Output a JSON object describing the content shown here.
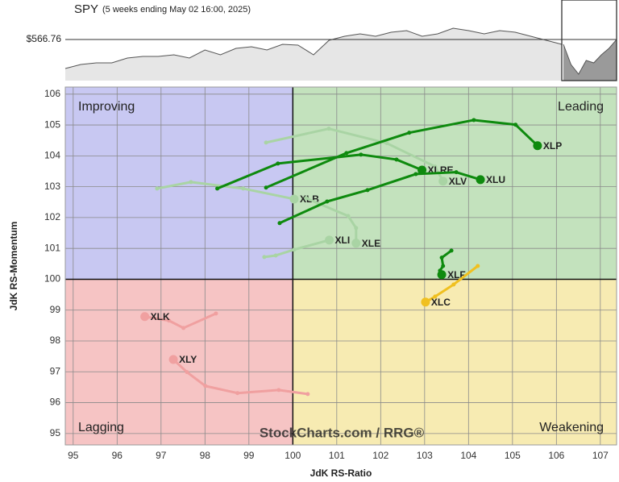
{
  "spy_chart": {
    "title": "SPY",
    "subtitle": "(5 weeks ending May 02 16:00, 2025)",
    "price_label": {
      "value": 566.76,
      "label": "$566.76"
    },
    "ylim": [
      485.2,
      645.2
    ],
    "history": [
      509.2,
      517.2,
      520.4,
      520.4,
      530,
      533.2,
      533.2,
      536.4,
      530,
      546,
      536.4,
      549.2,
      552.4,
      546,
      557.2,
      555.6,
      536.4,
      565.2,
      573.2,
      578,
      573.2,
      581.2,
      584.4,
      573.2,
      578,
      589.2,
      584.4,
      578,
      584.4,
      581.2,
      573.2,
      565.2,
      557.2
    ],
    "recent": [
      557.2,
      517.2,
      498,
      525.2,
      520.4,
      536.4,
      549.2,
      566.76
    ]
  },
  "chart_data": {
    "type": "line",
    "x_label": "JdK RS-Ratio",
    "y_label": "JdK RS-Momentum",
    "watermark": "StockCharts.com / RRG®",
    "quadrants": [
      "Improving",
      "Leading",
      "Weakening",
      "Lagging"
    ],
    "xlim": [
      94.82,
      107.37
    ],
    "ylim": [
      94.63,
      106.23
    ],
    "xticks": [
      95,
      96,
      97,
      98,
      99,
      100,
      101,
      102,
      103,
      104,
      105,
      106,
      107
    ],
    "yticks": [
      95,
      96,
      97,
      98,
      99,
      100,
      101,
      102,
      103,
      104,
      105,
      106
    ],
    "grid": true,
    "series": [
      {
        "name": "XLB",
        "color": "#a9d4a4",
        "x": [
          96.91,
          97.68,
          98.87,
          100.03
        ],
        "values": [
          102.94,
          103.15,
          102.94,
          102.6
        ]
      },
      {
        "name": "XLE",
        "color": "#a9d4a4",
        "x": [
          100.3,
          101.26,
          101.44,
          101.44
        ],
        "values": [
          102.63,
          102.05,
          101.66,
          101.17
        ]
      },
      {
        "name": "XLI",
        "color": "#a9d4a4",
        "x": [
          99.35,
          99.61,
          100.03,
          100.83
        ],
        "values": [
          100.72,
          100.77,
          100.96,
          101.27
        ]
      },
      {
        "name": "XLV",
        "color": "#a9d4a4",
        "x": [
          99.39,
          100.82,
          102.14,
          103.24,
          103.42
        ],
        "values": [
          104.43,
          104.88,
          104.41,
          103.65,
          103.18
        ]
      },
      {
        "name": "XLK",
        "color": "#f0a0a0",
        "x": [
          98.25,
          97.51,
          97.18,
          96.63
        ],
        "values": [
          98.89,
          98.42,
          98.66,
          98.79
        ]
      },
      {
        "name": "XLY",
        "color": "#f0a0a0",
        "x": [
          100.34,
          99.68,
          98.74,
          98.01,
          97.59,
          97.28
        ],
        "values": [
          96.28,
          96.41,
          96.31,
          96.54,
          96.99,
          97.4
        ]
      },
      {
        "name": "XLP",
        "color": "#0e8a0e",
        "x": [
          99.39,
          101.22,
          102.65,
          104.12,
          105.07,
          105.57
        ],
        "values": [
          102.97,
          104.09,
          104.75,
          105.16,
          105.01,
          104.33
        ]
      },
      {
        "name": "XLRE",
        "color": "#0e8a0e",
        "x": [
          98.28,
          99.66,
          101.55,
          102.36,
          102.94
        ],
        "values": [
          102.94,
          103.75,
          104.04,
          103.88,
          103.54
        ]
      },
      {
        "name": "XLU",
        "color": "#0e8a0e",
        "x": [
          99.7,
          100.78,
          101.7,
          102.8,
          103.72,
          104.27
        ],
        "values": [
          101.82,
          102.52,
          102.89,
          103.41,
          103.47,
          103.23
        ]
      },
      {
        "name": "XLF",
        "color": "#0e8a0e",
        "x": [
          103.61,
          103.39,
          103.42,
          103.35,
          103.39
        ],
        "values": [
          100.93,
          100.7,
          100.43,
          100.28,
          100.15
        ]
      },
      {
        "name": "XLC",
        "color": "#f0c020",
        "x": [
          104.21,
          103.66,
          103.24,
          103.02
        ],
        "values": [
          100.43,
          99.83,
          99.44,
          99.26
        ]
      }
    ]
  }
}
